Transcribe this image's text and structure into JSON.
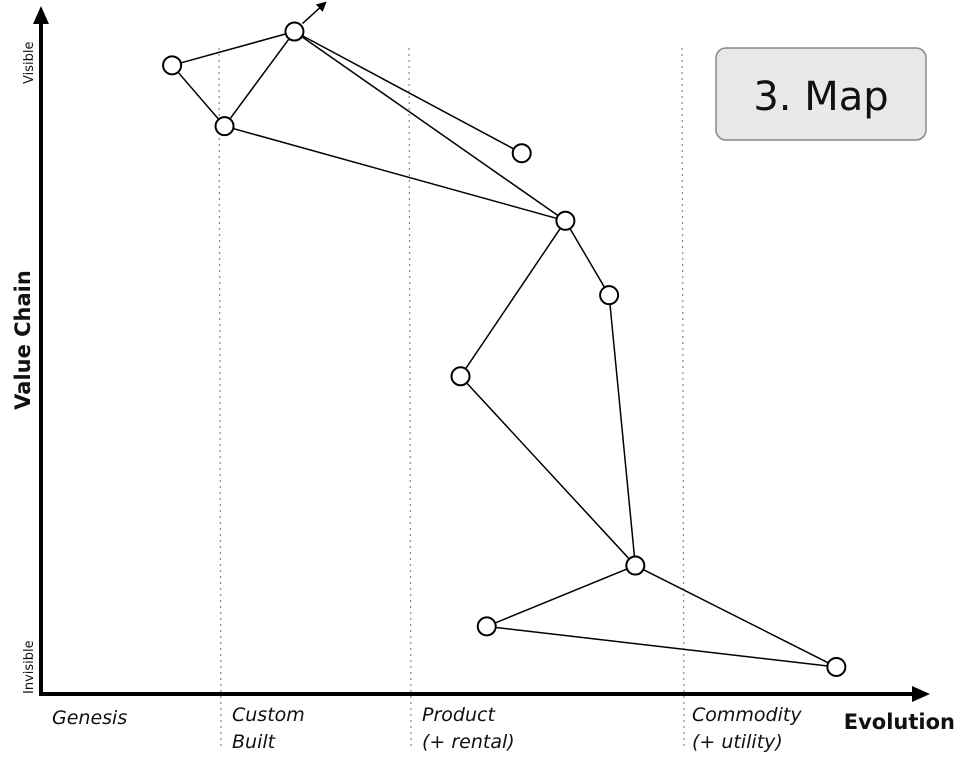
{
  "title": "3. Map",
  "axes": {
    "y_title": "Value Chain",
    "y_top_label": "Visible",
    "y_bottom_label": "Invisible",
    "x_title": "Evolution"
  },
  "stages": [
    {
      "key": "genesis",
      "lines": [
        "Genesis"
      ]
    },
    {
      "key": "custom",
      "lines": [
        "Custom",
        "Built"
      ]
    },
    {
      "key": "product",
      "lines": [
        "Product",
        "(+ rental)"
      ]
    },
    {
      "key": "commodity",
      "lines": [
        "Commodity",
        "(+ utility)"
      ]
    }
  ],
  "nodes": [
    {
      "id": "n1",
      "evolution": 0.15,
      "visibility": 0.93
    },
    {
      "id": "n2",
      "evolution": 0.29,
      "visibility": 0.98
    },
    {
      "id": "n3",
      "evolution": 0.21,
      "visibility": 0.84
    },
    {
      "id": "n4",
      "evolution": 0.55,
      "visibility": 0.8
    },
    {
      "id": "n5",
      "evolution": 0.6,
      "visibility": 0.7
    },
    {
      "id": "n6",
      "evolution": 0.65,
      "visibility": 0.59
    },
    {
      "id": "n7",
      "evolution": 0.48,
      "visibility": 0.47
    },
    {
      "id": "n8",
      "evolution": 0.68,
      "visibility": 0.19
    },
    {
      "id": "n9",
      "evolution": 0.51,
      "visibility": 0.1
    },
    {
      "id": "n10",
      "evolution": 0.91,
      "visibility": 0.04
    }
  ],
  "links": [
    [
      "n1",
      "n2"
    ],
    [
      "n1",
      "n3"
    ],
    [
      "n2",
      "n3"
    ],
    [
      "n2",
      "n4"
    ],
    [
      "n2",
      "n5"
    ],
    [
      "n3",
      "n5"
    ],
    [
      "n5",
      "n6"
    ],
    [
      "n5",
      "n7"
    ],
    [
      "n6",
      "n8"
    ],
    [
      "n7",
      "n8"
    ],
    [
      "n8",
      "n9"
    ],
    [
      "n8",
      "n10"
    ],
    [
      "n9",
      "n10"
    ]
  ],
  "movement": {
    "from": "n2",
    "direction": "evolve-up"
  }
}
